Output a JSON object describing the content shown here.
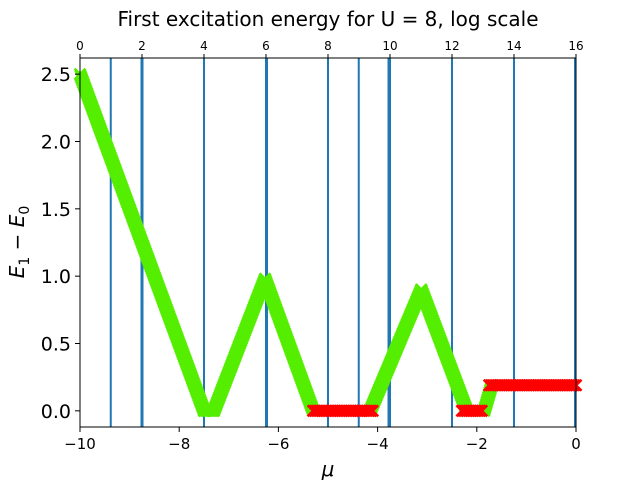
{
  "chart_data": {
    "type": "scatter",
    "title": "First excitation energy for U = 8, log scale",
    "xlabel": "μ",
    "ylabel_main": "E",
    "ylabel_sub1": "1",
    "ylabel_minus": " − ",
    "ylabel_sub0": "0",
    "xlim": [
      -10,
      0
    ],
    "ylim": [
      -0.12,
      2.62
    ],
    "x_ticks": [
      -10,
      -8,
      -6,
      -4,
      -2,
      0
    ],
    "x_tick_labels": [
      "−10",
      "−8",
      "−6",
      "−4",
      "−2",
      "0"
    ],
    "y_ticks": [
      0.0,
      0.5,
      1.0,
      1.5,
      2.0,
      2.5
    ],
    "y_tick_labels": [
      "0.0",
      "0.5",
      "1.0",
      "1.5",
      "2.0",
      "2.5"
    ],
    "top_axis_ticks": [
      0,
      2,
      4,
      6,
      8,
      10,
      12,
      14,
      16
    ],
    "top_axis_tick_labels": [
      "0",
      "2",
      "4",
      "6",
      "8",
      "10",
      "12",
      "14",
      "16"
    ],
    "top_axis_lim": [
      0,
      16
    ],
    "grid": false,
    "vertical_lines_x": [
      -9.38,
      -8.76,
      -8.74,
      -7.5,
      -6.25,
      -6.23,
      -5.0,
      -4.38,
      -3.78,
      -3.75,
      -2.5,
      -1.25,
      -0.02
    ],
    "vertical_line_color": "#1f77b4",
    "series": [
      {
        "marker": "x",
        "color": "#55ee00",
        "segments": [
          {
            "x_start": -10.0,
            "x_end": -7.5,
            "y_start": 2.5,
            "y_end": 0.0
          },
          {
            "x_start": -7.5,
            "x_end": -7.3,
            "y_start": 0.0,
            "y_end": 0.0
          },
          {
            "x_start": -7.3,
            "x_end": -6.27,
            "y_start": 0.0,
            "y_end": 0.98
          },
          {
            "x_start": -6.27,
            "x_end": -5.3,
            "y_start": 0.98,
            "y_end": 0.0
          },
          {
            "x_start": -4.15,
            "x_end": -3.12,
            "y_start": 0.0,
            "y_end": 0.9
          },
          {
            "x_start": -3.12,
            "x_end": -2.2,
            "y_start": 0.9,
            "y_end": 0.0
          },
          {
            "x_start": -1.85,
            "x_end": -1.7,
            "y_start": 0.0,
            "y_end": 0.19
          }
        ]
      },
      {
        "marker": "x",
        "color": "#ff0000",
        "segments": [
          {
            "x_start": -5.3,
            "x_end": -4.1,
            "y_start": 0.0,
            "y_end": 0.0
          },
          {
            "x_start": -2.3,
            "x_end": -1.9,
            "y_start": 0.0,
            "y_end": 0.0
          },
          {
            "x_start": -1.75,
            "x_end": 0.0,
            "y_start": 0.19,
            "y_end": 0.19
          }
        ]
      }
    ]
  }
}
